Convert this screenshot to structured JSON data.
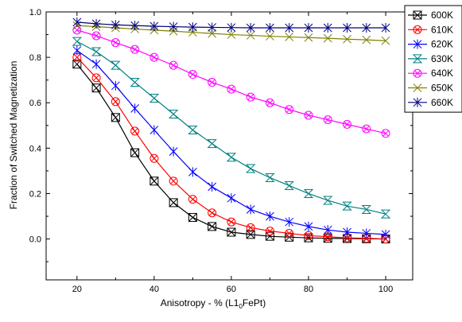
{
  "chart_data": {
    "type": "line",
    "title": "",
    "xlabel": {
      "main": "Anisotropy - % (L1",
      "subscript": "0",
      "suffix": "FePt)"
    },
    "ylabel": "Fraction of Switched Magnetization",
    "xlim": [
      12,
      107
    ],
    "ylim": [
      -0.18,
      1.0
    ],
    "xticks": [
      "20",
      "40",
      "60",
      "80",
      "100"
    ],
    "yticks": [
      "0.0",
      "0.2",
      "0.4",
      "0.6",
      "0.8",
      "1.0"
    ],
    "grid": false,
    "legend_position": "top-right",
    "x": [
      20,
      25,
      30,
      35,
      40,
      45,
      50,
      55,
      60,
      65,
      70,
      75,
      80,
      85,
      90,
      95,
      100
    ],
    "series": [
      {
        "name": "600K",
        "color": "#000000",
        "marker": "square-x",
        "values": [
          0.77,
          0.665,
          0.535,
          0.38,
          0.255,
          0.16,
          0.095,
          0.055,
          0.03,
          0.02,
          0.012,
          0.008,
          0.005,
          0.003,
          0.002,
          0.001,
          0.0
        ]
      },
      {
        "name": "610K",
        "color": "#ff0000",
        "marker": "circle-x",
        "values": [
          0.8,
          0.71,
          0.605,
          0.475,
          0.355,
          0.255,
          0.175,
          0.115,
          0.075,
          0.05,
          0.035,
          0.025,
          0.015,
          0.01,
          0.005,
          0.003,
          0.0
        ]
      },
      {
        "name": "620K",
        "color": "#0000ff",
        "marker": "star",
        "values": [
          0.83,
          0.77,
          0.675,
          0.575,
          0.48,
          0.385,
          0.295,
          0.23,
          0.18,
          0.13,
          0.1,
          0.075,
          0.055,
          0.04,
          0.03,
          0.025,
          0.02
        ]
      },
      {
        "name": "630K",
        "color": "#008080",
        "marker": "hourglass",
        "values": [
          0.87,
          0.825,
          0.765,
          0.69,
          0.62,
          0.55,
          0.48,
          0.42,
          0.36,
          0.31,
          0.27,
          0.235,
          0.2,
          0.17,
          0.145,
          0.13,
          0.11
        ]
      },
      {
        "name": "640K",
        "color": "#ff00ff",
        "marker": "circle-x",
        "values": [
          0.92,
          0.895,
          0.865,
          0.835,
          0.8,
          0.765,
          0.725,
          0.69,
          0.66,
          0.625,
          0.6,
          0.57,
          0.545,
          0.525,
          0.505,
          0.485,
          0.465
        ]
      },
      {
        "name": "650K",
        "color": "#808000",
        "marker": "x",
        "values": [
          0.94,
          0.935,
          0.93,
          0.925,
          0.92,
          0.915,
          0.91,
          0.905,
          0.9,
          0.897,
          0.893,
          0.89,
          0.887,
          0.884,
          0.88,
          0.877,
          0.873
        ]
      },
      {
        "name": "660K",
        "color": "#000080",
        "marker": "star",
        "values": [
          0.955,
          0.948,
          0.943,
          0.94,
          0.937,
          0.935,
          0.933,
          0.932,
          0.931,
          0.93,
          0.93,
          0.93,
          0.93,
          0.93,
          0.93,
          0.93,
          0.93
        ]
      }
    ]
  }
}
